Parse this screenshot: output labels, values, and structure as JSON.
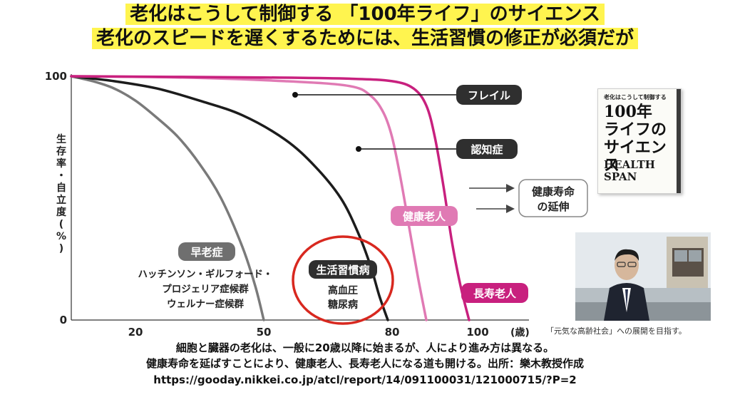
{
  "title": {
    "line1": "老化はこうして制御する 「100年ライフ」のサイエンス",
    "line2": "老化のスピードを遅くするためには、生活習慣の修正が必須だが"
  },
  "chart_data": {
    "type": "line",
    "ylabel": "生存率・自立度(%)",
    "x_unit": "(歳)",
    "x_ticks": [
      20,
      50,
      80,
      100
    ],
    "y_ticks": [
      0,
      100
    ],
    "xlim": [
      5,
      112
    ],
    "ylim": [
      0,
      100
    ],
    "series": [
      {
        "name": "早老症",
        "color": "#7a7a7a",
        "x": [
          5,
          10,
          15,
          20,
          25,
          30,
          35,
          40,
          45,
          48,
          50
        ],
        "y": [
          100,
          98,
          95,
          90,
          83,
          75,
          64,
          50,
          30,
          14,
          0
        ]
      },
      {
        "name": "生活習慣病",
        "color": "#1c1c1c",
        "x": [
          5,
          15,
          25,
          35,
          45,
          55,
          62,
          68,
          72,
          75,
          77,
          79
        ],
        "y": [
          100,
          98,
          95,
          90,
          84,
          74,
          63,
          50,
          36,
          22,
          10,
          0
        ]
      },
      {
        "name": "健康老人",
        "color": "#e07ab4",
        "x": [
          5,
          30,
          55,
          70,
          75,
          78,
          80,
          82,
          84,
          86,
          88
        ],
        "y": [
          100,
          99.5,
          98,
          96,
          92,
          85,
          75,
          58,
          38,
          18,
          0
        ]
      },
      {
        "name": "長寿老人",
        "color": "#c8207e",
        "x": [
          5,
          50,
          70,
          80,
          85,
          88,
          90,
          92,
          94,
          96,
          98
        ],
        "y": [
          100,
          99.5,
          99,
          98,
          95,
          88,
          75,
          55,
          32,
          14,
          0
        ]
      }
    ]
  },
  "labels": {
    "frail": "フレイル",
    "dementia": "認知症",
    "healthy_life_1": "健康寿命",
    "healthy_life_2": "の延伸",
    "healthy_elderly": "健康老人",
    "longevity_elderly": "長寿老人",
    "progeria": "早老症",
    "progeria_1": "ハッチンソン・ギルフォード・",
    "progeria_2": "プロジェリア症候群",
    "progeria_3": "ウェルナー症候群",
    "lifestyle": "生活習慣病",
    "lifestyle_1": "高血圧",
    "lifestyle_2": "糖尿病"
  },
  "book": {
    "top": "老化はこうして制御する",
    "main1": "100年",
    "main2": "ライフの",
    "main3": "サイエンス",
    "en1": "HEALTH",
    "en2": "SPAN"
  },
  "photo_caption": "「元気な高齢社会」への展開を目指す。",
  "captions": {
    "line1": "細胞と臓器の老化は、一般に20歳以降に始まるが、人により進み方は異なる。",
    "line2": "健康寿命を延ばすことにより、健康老人、長寿老人になる道も開ける。出所：樂木教授作成",
    "line3": "https://gooday.nikkei.co.jp/atcl/report/14/091100031/121000715/?P=2"
  },
  "colors": {
    "highlight": "#fff44f",
    "label_box": "#2f2f2f",
    "pink_box": "#e07ab4",
    "magenta_box": "#c8207e",
    "red_circle": "#d8281f"
  }
}
